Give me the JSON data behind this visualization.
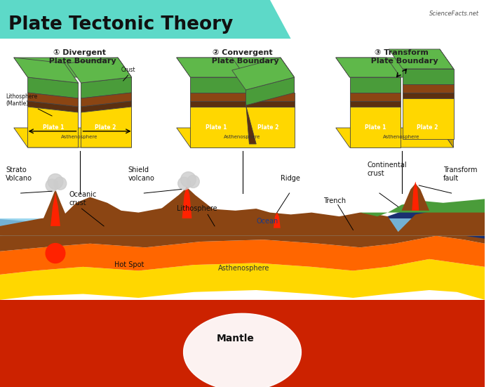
{
  "title": "Plate Tectonic Theory",
  "title_bg_color": "#5dd9c8",
  "bg_color": "#ffffff",
  "section_labels": [
    "① Divergent\n  Plate Boundary",
    "② Convergent\n  Plate Boundary",
    "③ Transform\n  Plate Boundary"
  ],
  "colors": {
    "green_top": "#4a9c3a",
    "lt_green": "#5fb84a",
    "brown": "#8B4513",
    "dk_brown": "#5c3010",
    "yellow": "#FFD700",
    "dk_yellow": "#c8a000",
    "ocean_blue": "#87CEEB",
    "dark_blue": "#1a3a8a",
    "orange": "#FF6600",
    "red_mantle": "#CC2200",
    "orange_asth": "#FF8C00",
    "gray_smoke": "#bbbbbb"
  }
}
